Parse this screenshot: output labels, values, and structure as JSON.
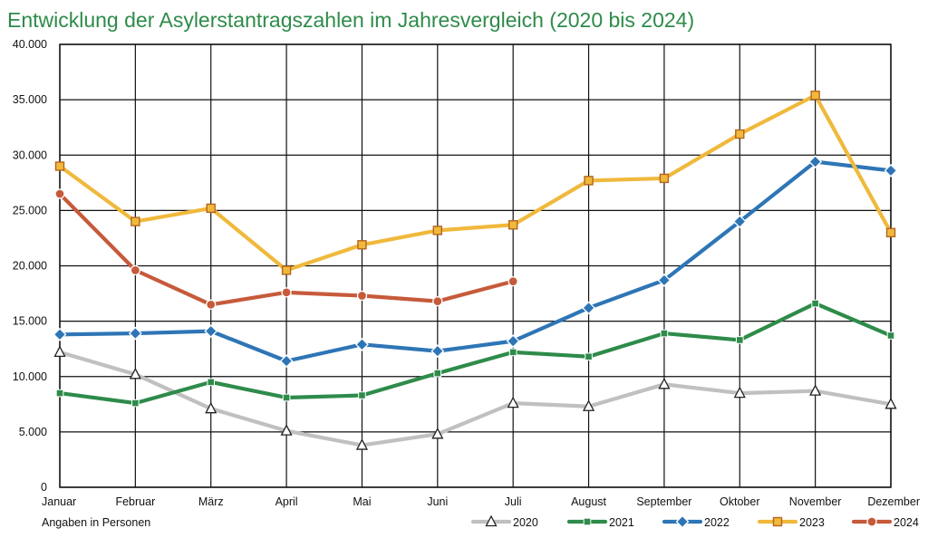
{
  "chart_data": {
    "type": "line",
    "title": "Entwicklung der Asylerstantragszahlen im Jahresvergleich (2020 bis 2024)",
    "note": "Angaben in Personen",
    "categories": [
      "Januar",
      "Februar",
      "März",
      "April",
      "Mai",
      "Juni",
      "Juli",
      "August",
      "September",
      "Oktober",
      "November",
      "Dezember"
    ],
    "ylim": [
      0,
      40000
    ],
    "yticks": [
      0,
      5000,
      10000,
      15000,
      20000,
      25000,
      30000,
      35000,
      40000
    ],
    "ytick_labels": [
      "0",
      "5.000",
      "10.000",
      "15.000",
      "20.000",
      "25.000",
      "30.000",
      "35.000",
      "40.000"
    ],
    "grid": true,
    "legend_position": "bottom-right",
    "series": [
      {
        "name": "2020",
        "color": "#c0c0c0",
        "marker": "triangle",
        "values": [
          12200,
          10200,
          7100,
          5100,
          3800,
          4800,
          7600,
          7300,
          9300,
          8500,
          8700,
          7500
        ]
      },
      {
        "name": "2021",
        "color": "#2e8b4a",
        "marker": "square",
        "values": [
          8500,
          7600,
          9500,
          8100,
          8300,
          10300,
          12200,
          11800,
          13900,
          13300,
          16600,
          13700
        ]
      },
      {
        "name": "2022",
        "color": "#2e75b6",
        "marker": "diamond",
        "values": [
          13800,
          13900,
          14100,
          11400,
          12900,
          12300,
          13200,
          16200,
          18700,
          24000,
          29400,
          28600
        ]
      },
      {
        "name": "2023",
        "color": "#f0b93c",
        "marker": "square-outline",
        "values": [
          29000,
          24000,
          25200,
          19600,
          21900,
          23200,
          23700,
          27700,
          27900,
          31900,
          35400,
          23000
        ]
      },
      {
        "name": "2024",
        "color": "#c65a3a",
        "marker": "circle",
        "values": [
          26500,
          19600,
          16500,
          17600,
          17300,
          16800,
          18600,
          null,
          null,
          null,
          null,
          null
        ]
      }
    ]
  }
}
